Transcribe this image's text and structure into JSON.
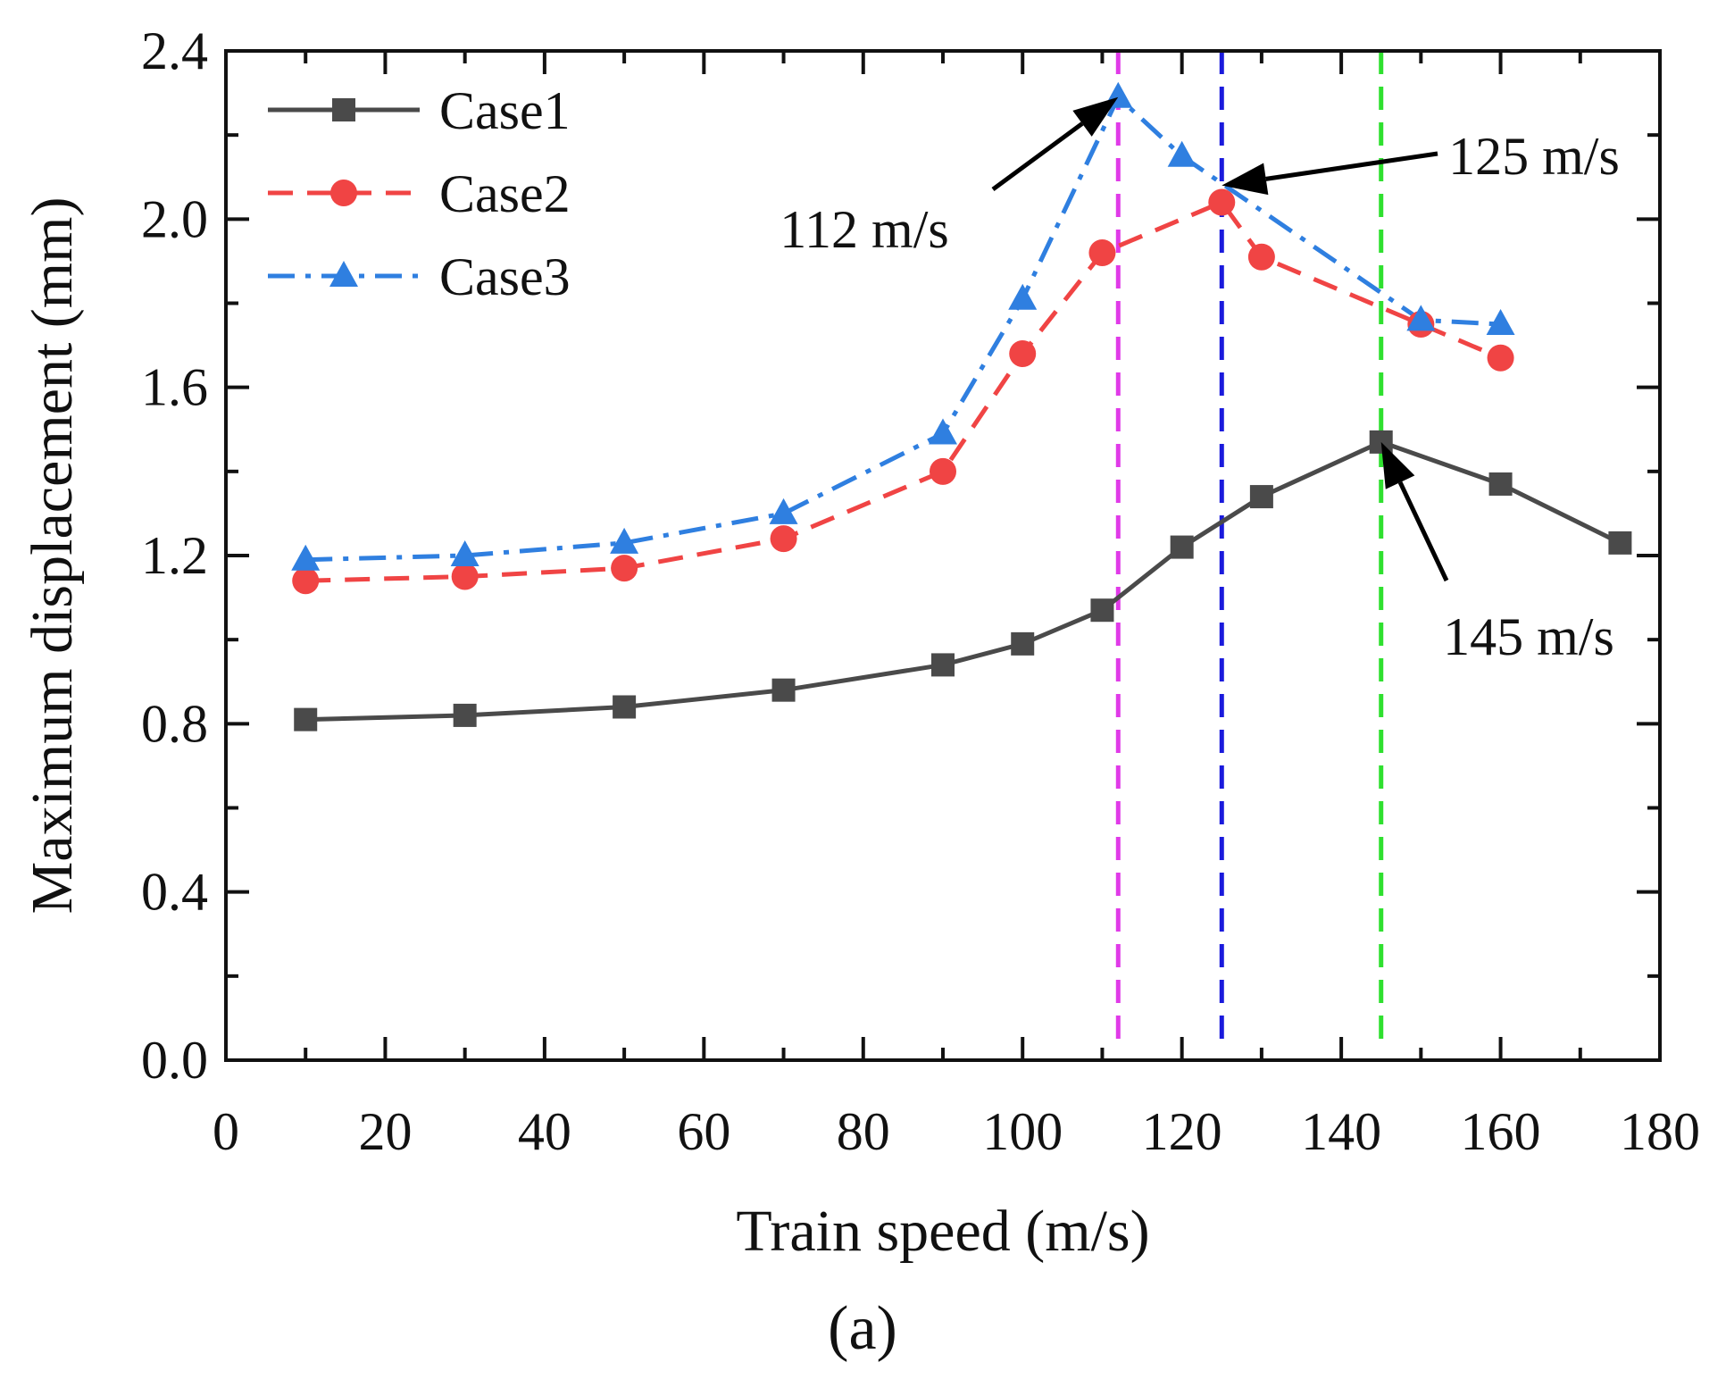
{
  "chart_data": {
    "type": "line",
    "title": "",
    "xlabel": "Train speed (m/s)",
    "ylabel": "Maximum displacement (mm)",
    "panel_label": "(a)",
    "xlim": [
      0,
      180
    ],
    "ylim": [
      0,
      2.4
    ],
    "xticks": [
      0,
      20,
      40,
      60,
      80,
      100,
      120,
      140,
      160,
      180
    ],
    "yticks": [
      0.0,
      0.4,
      0.8,
      1.2,
      1.6,
      2.0,
      2.4
    ],
    "ytick_labels": [
      "0.0",
      "0.4",
      "0.8",
      "1.2",
      "1.6",
      "2.0",
      "2.4"
    ],
    "grid": false,
    "legend_position": "top-left",
    "series": [
      {
        "name": "Case1",
        "color": "#4a4a4a",
        "dash": "solid",
        "marker": "square",
        "x": [
          10,
          30,
          50,
          70,
          90,
          100,
          110,
          120,
          130,
          145,
          160,
          175
        ],
        "y": [
          0.81,
          0.82,
          0.84,
          0.88,
          0.94,
          0.99,
          1.07,
          1.22,
          1.34,
          1.47,
          1.37,
          1.23
        ]
      },
      {
        "name": "Case2",
        "color": "#f04444",
        "dash": "dashed",
        "marker": "circle",
        "x": [
          10,
          30,
          50,
          70,
          90,
          100,
          110,
          125,
          130,
          150,
          160
        ],
        "y": [
          1.14,
          1.15,
          1.17,
          1.24,
          1.4,
          1.68,
          1.92,
          2.04,
          1.91,
          1.75,
          1.67
        ]
      },
      {
        "name": "Case3",
        "color": "#2f7fe0",
        "dash": "dashdot",
        "marker": "triangle",
        "x": [
          10,
          30,
          50,
          70,
          90,
          100,
          112,
          120,
          150,
          160
        ],
        "y": [
          1.19,
          1.2,
          1.23,
          1.3,
          1.49,
          1.81,
          2.29,
          2.15,
          1.76,
          1.75
        ]
      }
    ],
    "reference_lines": [
      {
        "x": 112,
        "color": "#e03ae8"
      },
      {
        "x": 125,
        "color": "#1a1adc"
      },
      {
        "x": 145,
        "color": "#2fe02f"
      }
    ],
    "annotations": [
      {
        "text": "112 m/s",
        "target_x": 112,
        "target_y": 2.29
      },
      {
        "text": "125 m/s",
        "target_x": 125,
        "target_y": 2.08
      },
      {
        "text": "145 m/s",
        "target_x": 145,
        "target_y": 1.47
      }
    ]
  }
}
